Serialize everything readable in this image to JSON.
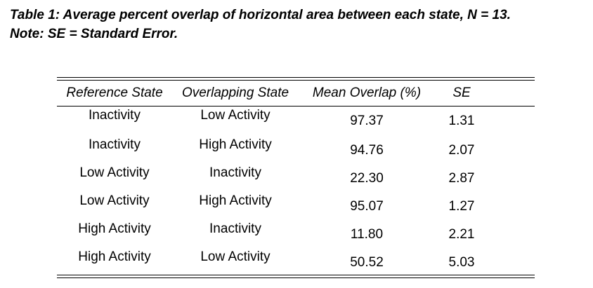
{
  "caption": {
    "line1": "Table 1: Average percent overlap of horizontal area between each state, N = 13.",
    "line2": "Note: SE = Standard Error."
  },
  "table": {
    "headers": [
      "Reference State",
      "Overlapping State",
      "Mean Overlap (%)",
      "SE"
    ],
    "rows": [
      [
        "Inactivity",
        "Low Activity",
        "97.37",
        "1.31"
      ],
      [
        "Inactivity",
        "High Activity",
        "94.76",
        "2.07"
      ],
      [
        "Low Activity",
        "Inactivity",
        "22.30",
        "2.87"
      ],
      [
        "Low Activity",
        "High Activity",
        "95.07",
        "1.27"
      ],
      [
        "High Activity",
        "Inactivity",
        "11.80",
        "2.21"
      ],
      [
        "High Activity",
        "Low Activity",
        "50.52",
        "5.03"
      ]
    ]
  }
}
